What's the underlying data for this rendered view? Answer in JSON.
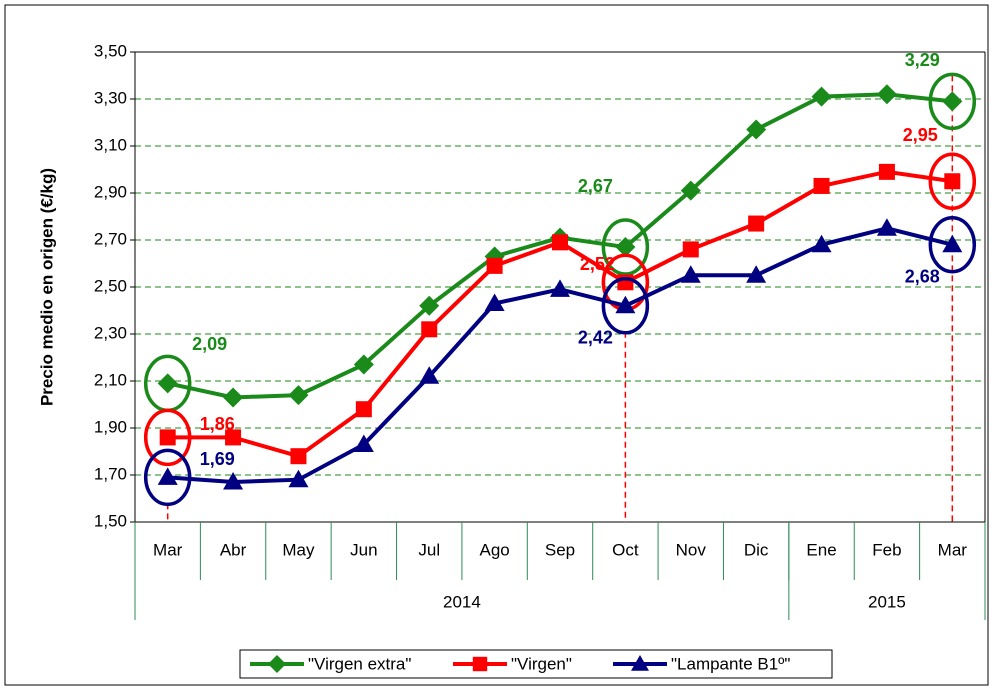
{
  "chart_data": {
    "type": "line",
    "y_label": "Precio medio en origen (€/kg)",
    "categories": [
      "Mar",
      "Abr",
      "May",
      "Jun",
      "Jul",
      "Ago",
      "Sep",
      "Oct",
      "Nov",
      "Dic",
      "Ene",
      "Feb",
      "Mar"
    ],
    "category_groups": [
      {
        "label": "2014",
        "count": 10
      },
      {
        "label": "2015",
        "count": 3
      }
    ],
    "series": [
      {
        "name": "\"Virgen extra\"",
        "color": "#1a8a1a",
        "marker": "diamond",
        "values": [
          2.09,
          2.03,
          2.04,
          2.17,
          2.42,
          2.63,
          2.71,
          2.67,
          2.91,
          3.17,
          3.31,
          3.32,
          3.29
        ],
        "value_labels": [
          "2,09",
          null,
          null,
          null,
          null,
          null,
          null,
          "2,67",
          null,
          null,
          null,
          null,
          "3,29"
        ]
      },
      {
        "name": "\"Virgen\"",
        "color": "#ff0000",
        "marker": "square",
        "values": [
          1.86,
          1.86,
          1.78,
          1.98,
          2.32,
          2.59,
          2.69,
          2.52,
          2.66,
          2.77,
          2.93,
          2.99,
          2.95
        ],
        "value_labels": [
          "1,86",
          null,
          null,
          null,
          null,
          null,
          null,
          "2,52",
          null,
          null,
          null,
          null,
          "2,95"
        ]
      },
      {
        "name": "\"Lampante B1º\"",
        "color": "#000080",
        "marker": "triangle",
        "values": [
          1.69,
          1.67,
          1.68,
          1.83,
          2.12,
          2.43,
          2.49,
          2.42,
          2.55,
          2.55,
          2.68,
          2.75,
          2.68
        ],
        "value_labels": [
          "1,69",
          null,
          null,
          null,
          null,
          null,
          null,
          "2,42",
          null,
          null,
          null,
          null,
          "2,68"
        ]
      }
    ],
    "highlight_categories": [
      0,
      7,
      12
    ],
    "ylim": [
      1.5,
      3.5
    ],
    "yticks": [
      {
        "value": 1.5,
        "label": "1,50"
      },
      {
        "value": 1.7,
        "label": "1,70"
      },
      {
        "value": 1.9,
        "label": "1,90"
      },
      {
        "value": 2.1,
        "label": "2,10"
      },
      {
        "value": 2.3,
        "label": "2,30"
      },
      {
        "value": 2.5,
        "label": "2,50"
      },
      {
        "value": 2.7,
        "label": "2,70"
      },
      {
        "value": 2.9,
        "label": "2,90"
      },
      {
        "value": 3.1,
        "label": "3,10"
      },
      {
        "value": 3.3,
        "label": "3,30"
      },
      {
        "value": 3.5,
        "label": "3,50"
      }
    ],
    "grid": true,
    "legend": "bottom"
  }
}
